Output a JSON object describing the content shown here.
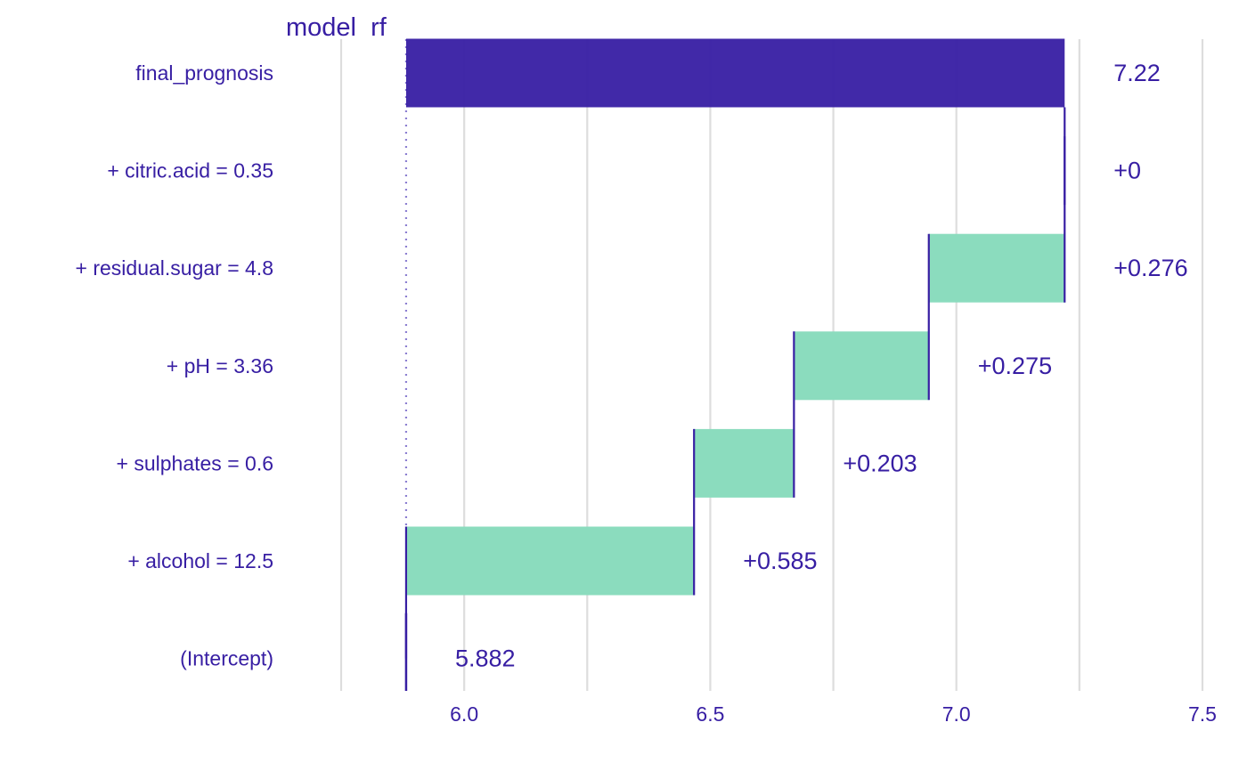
{
  "strip_label": "model  rf",
  "colors": {
    "text": "#371ea3",
    "final_bar": "#371ea3",
    "positive": "#8bdcbe",
    "connector": "#371ea3",
    "grid": "#dddddd",
    "baseline": "#8c7fd1"
  },
  "chart_data": {
    "type": "bar",
    "subtype": "waterfall (break-down)",
    "orientation": "horizontal",
    "intercept": 5.882,
    "xlim": [
      5.75,
      7.5
    ],
    "x_ticks": [
      "6.0",
      "6.5",
      "7.0",
      "7.5"
    ],
    "x_tick_values": [
      6.0,
      6.5,
      7.0,
      7.5
    ],
    "grid": true,
    "rows": [
      {
        "label": "final_prognosis",
        "start": 5.882,
        "end": 7.22,
        "value_label": "7.22",
        "kind": "final"
      },
      {
        "label": "+ citric.acid = 0.35",
        "start": 7.22,
        "end": 7.22,
        "value_label": "+0",
        "kind": "positive"
      },
      {
        "label": "+ residual.sugar = 4.8",
        "start": 6.944,
        "end": 7.22,
        "value_label": "+0.276",
        "kind": "positive"
      },
      {
        "label": "+ pH = 3.36",
        "start": 6.67,
        "end": 6.944,
        "value_label": "+0.275",
        "kind": "positive"
      },
      {
        "label": "+ sulphates = 0.6",
        "start": 6.467,
        "end": 6.67,
        "value_label": "+0.203",
        "kind": "positive"
      },
      {
        "label": "+ alcohol = 12.5",
        "start": 5.882,
        "end": 6.467,
        "value_label": "+0.585",
        "kind": "positive"
      },
      {
        "label": "(Intercept)",
        "start": 5.882,
        "end": 5.882,
        "value_label": "5.882",
        "kind": "intercept"
      }
    ]
  }
}
